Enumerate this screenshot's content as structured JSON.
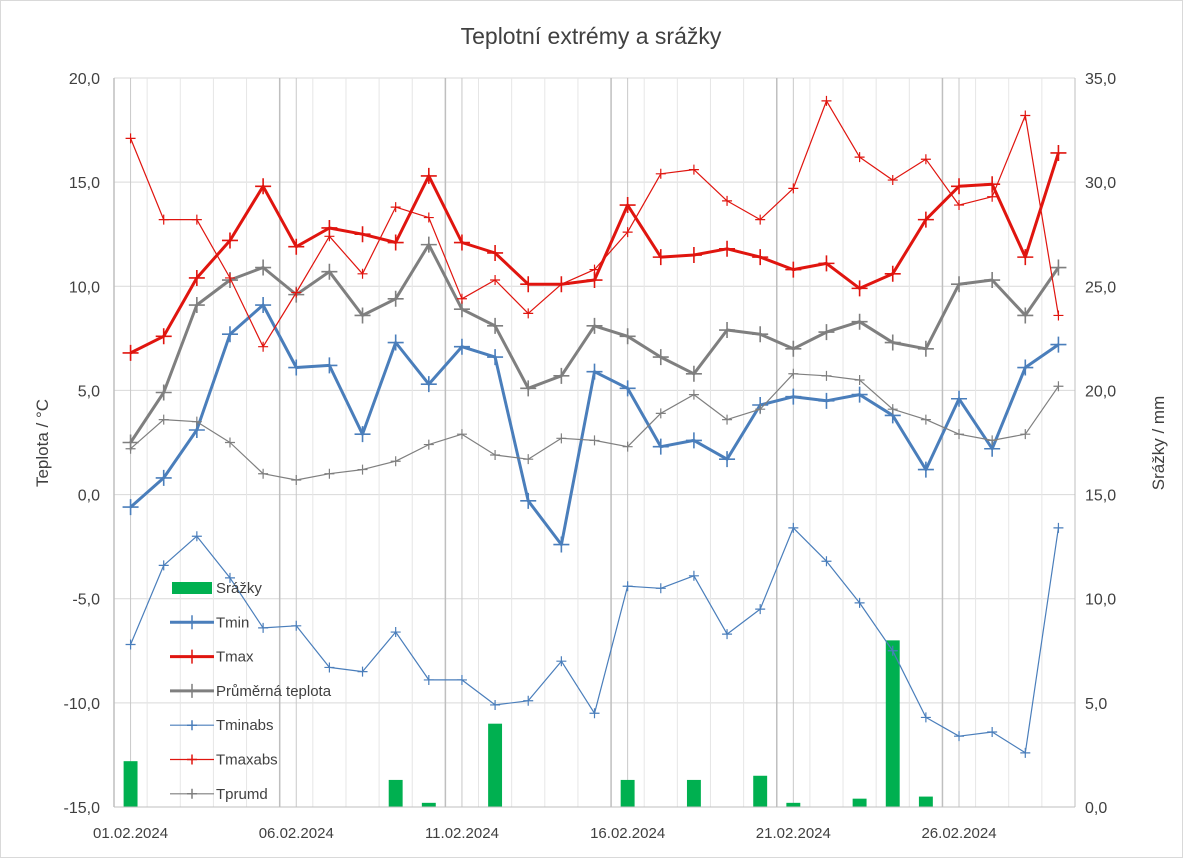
{
  "chart_data": {
    "type": "line",
    "title": "Teplotní extrémy a srážky",
    "ylabel_left": "Teplota / °C",
    "ylabel_right": "Srážky / mm",
    "ylim_left": [
      -15,
      20
    ],
    "ylim_right": [
      0,
      35
    ],
    "grid": true,
    "legend_placement": "left-bottom inside plot",
    "x_tick_labels": [
      "01.02.2024",
      "06.02.2024",
      "11.02.2024",
      "16.02.2024",
      "21.02.2024",
      "26.02.2024"
    ],
    "x_tick_indices": [
      0,
      5,
      10,
      15,
      20,
      25
    ],
    "y_left_ticks": [
      "-15,0",
      "-10,0",
      "-5,0",
      "0,0",
      "5,0",
      "10,0",
      "15,0",
      "20,0"
    ],
    "y_left_values": [
      -15,
      -10,
      -5,
      0,
      5,
      10,
      15,
      20
    ],
    "y_right_ticks": [
      "0,0",
      "5,0",
      "10,0",
      "15,0",
      "20,0",
      "25,0",
      "30,0",
      "35,0"
    ],
    "y_right_values": [
      0,
      5,
      10,
      15,
      20,
      25,
      30,
      35
    ],
    "n_days": 29,
    "series": [
      {
        "name": "Srážky",
        "kind": "bar",
        "axis": "right",
        "color": "#00b050",
        "values": [
          2.2,
          0,
          0,
          0,
          0,
          0,
          0,
          0,
          1.3,
          0.2,
          0,
          4.0,
          0,
          0,
          0,
          1.3,
          0,
          1.3,
          0,
          1.5,
          0.2,
          0,
          0.4,
          8.0,
          0.5,
          0,
          0,
          0,
          0
        ]
      },
      {
        "name": "Tmin",
        "kind": "line",
        "axis": "left",
        "color": "#4a7ebb",
        "width": 3,
        "values": [
          -0.6,
          0.8,
          3.1,
          7.7,
          9.1,
          6.1,
          6.2,
          2.9,
          7.3,
          5.3,
          7.1,
          6.6,
          -0.3,
          -2.4,
          5.9,
          5.1,
          2.3,
          2.6,
          1.7,
          4.3,
          4.7,
          4.5,
          4.8,
          3.8,
          1.2,
          4.6,
          2.2,
          6.1,
          7.2
        ]
      },
      {
        "name": "Tmax",
        "kind": "line",
        "axis": "left",
        "color": "#e0150f",
        "width": 3,
        "values": [
          6.8,
          7.6,
          10.4,
          12.2,
          14.8,
          11.9,
          12.8,
          12.5,
          12.1,
          15.3,
          12.1,
          11.6,
          10.1,
          10.1,
          10.3,
          13.9,
          11.4,
          11.5,
          11.8,
          11.4,
          10.8,
          11.1,
          9.9,
          10.6,
          13.2,
          14.8,
          14.9,
          11.4,
          16.4
        ]
      },
      {
        "name": "Průměrná teplota",
        "kind": "line",
        "axis": "left",
        "color": "#7f7f7f",
        "width": 3,
        "values": [
          2.5,
          4.9,
          9.1,
          10.3,
          10.9,
          9.6,
          10.7,
          8.6,
          9.4,
          12.0,
          8.9,
          8.1,
          5.1,
          5.7,
          8.1,
          7.6,
          6.6,
          5.8,
          7.9,
          7.7,
          7.0,
          7.8,
          8.3,
          7.3,
          7.0,
          10.1,
          10.3,
          8.6,
          10.9
        ]
      },
      {
        "name": "Tminabs",
        "kind": "line",
        "axis": "left",
        "color": "#4a7ebb",
        "width": 1.2,
        "values": [
          -7.2,
          -3.4,
          -2.0,
          -4.0,
          -6.4,
          -6.3,
          -8.3,
          -8.5,
          -6.6,
          -8.9,
          -8.9,
          -10.1,
          -9.9,
          -8.0,
          -10.5,
          -4.4,
          -4.5,
          -3.9,
          -6.7,
          -5.5,
          -1.6,
          -3.2,
          -5.2,
          -7.5,
          -10.7,
          -11.6,
          -11.4,
          -12.4,
          -1.6
        ]
      },
      {
        "name": "Tmaxabs",
        "kind": "line",
        "axis": "left",
        "color": "#e0150f",
        "width": 1.2,
        "values": [
          17.1,
          13.2,
          13.2,
          10.4,
          7.1,
          9.7,
          12.4,
          10.6,
          13.8,
          13.3,
          9.4,
          10.3,
          8.7,
          10.1,
          10.8,
          12.6,
          15.4,
          15.6,
          14.1,
          13.2,
          14.7,
          18.9,
          16.2,
          15.1,
          16.1,
          13.9,
          14.3,
          18.2,
          8.6
        ]
      },
      {
        "name": "Tprumd",
        "kind": "line",
        "axis": "left",
        "color": "#7f7f7f",
        "width": 1.2,
        "values": [
          2.2,
          3.6,
          3.5,
          2.5,
          1.0,
          0.7,
          1.0,
          1.2,
          1.6,
          2.4,
          2.9,
          1.9,
          1.7,
          2.7,
          2.6,
          2.3,
          3.9,
          4.8,
          3.6,
          4.1,
          5.8,
          5.7,
          5.5,
          4.1,
          3.6,
          2.9,
          2.6,
          2.9,
          5.2
        ]
      }
    ]
  }
}
